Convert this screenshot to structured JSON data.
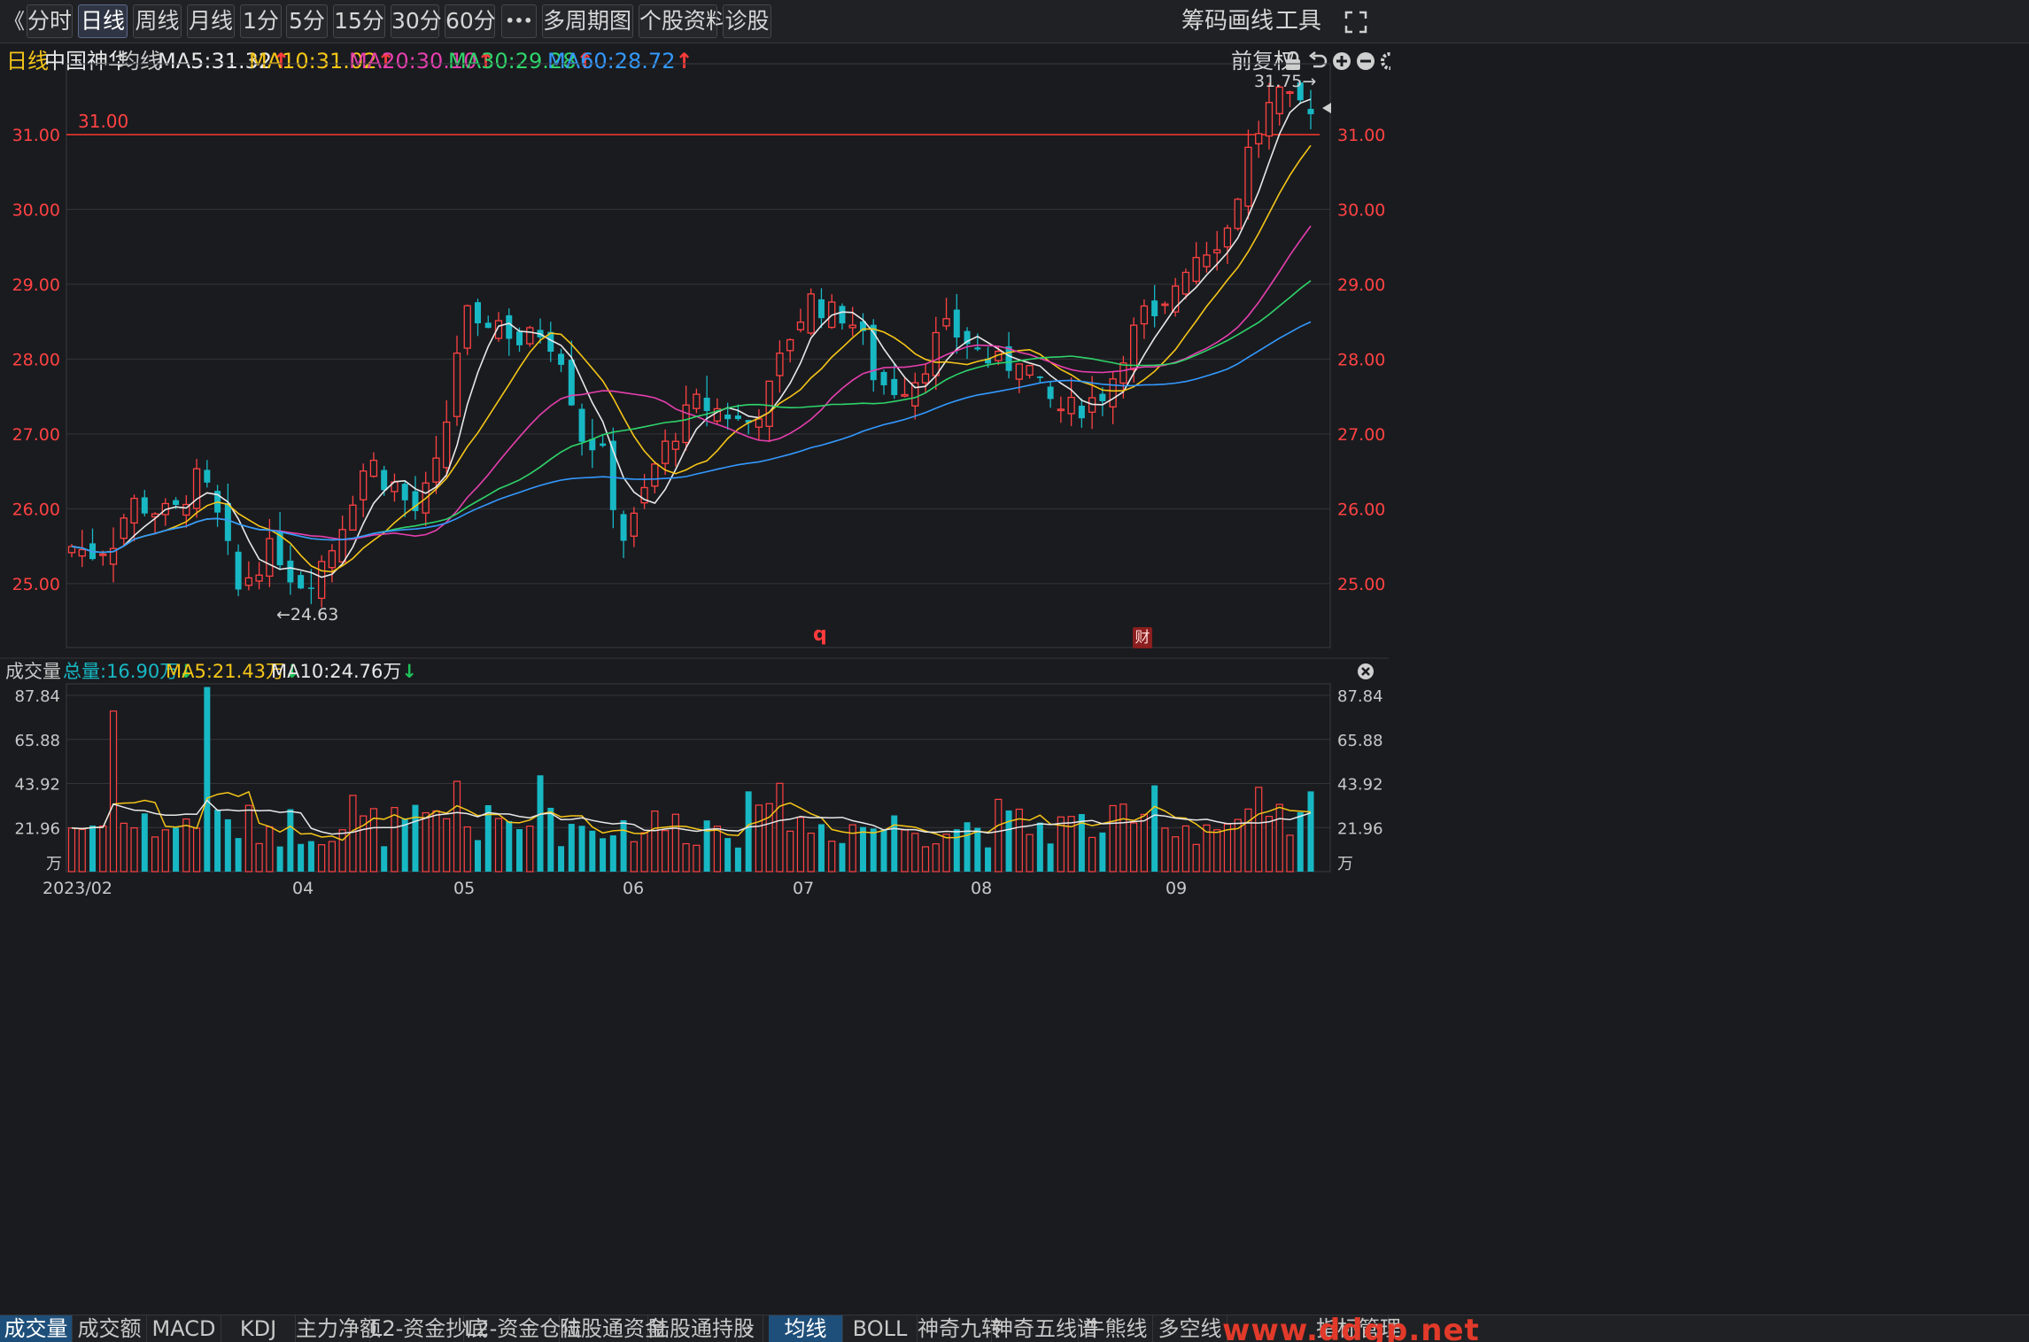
{
  "toolbar": {
    "back_glyph": "《",
    "tabs": [
      {
        "label": "分时",
        "active": false
      },
      {
        "label": "日线",
        "active": true
      },
      {
        "label": "周线",
        "active": false
      },
      {
        "label": "月线",
        "active": false
      },
      {
        "label": "1分",
        "active": false
      },
      {
        "label": "5分",
        "active": false
      },
      {
        "label": "15分",
        "active": false
      },
      {
        "label": "30分",
        "active": false
      },
      {
        "label": "60分",
        "active": false
      },
      {
        "label": "•••",
        "active": false
      },
      {
        "label": "多周期图",
        "active": false
      },
      {
        "label": "个股资料",
        "active": false
      },
      {
        "label": "诊股",
        "active": false
      }
    ],
    "right": {
      "chips": "筹码",
      "draw": "画线",
      "tools": "工具"
    }
  },
  "header": {
    "period": "日线",
    "stock": "中国神华",
    "ma_label": "均线",
    "ma": [
      {
        "label": "MA5:31.32",
        "color": "#e8e8e8"
      },
      {
        "label": "MA10:31.02",
        "color": "#f5c518"
      },
      {
        "label": "MA20:30.10",
        "color": "#e53fae"
      },
      {
        "label": "MA30:29.28",
        "color": "#2fd46a"
      },
      {
        "label": "MA60:28.72",
        "color": "#3399ff"
      }
    ],
    "adjust": "前复权"
  },
  "price_axis": {
    "ticks": [
      "25.00",
      "26.00",
      "27.00",
      "28.00",
      "29.00",
      "30.00",
      "31.00"
    ],
    "ref_line_label": "31.00",
    "high_label": "31.75→",
    "low_label": "←24.63",
    "marker_q": "q",
    "marker_cai": "财"
  },
  "volume": {
    "title": "成交量",
    "total": "总量:16.90万",
    "ma5": "MA5:21.43万",
    "ma10": "MA10:24.76万",
    "ticks": [
      "87.84",
      "65.88",
      "43.92",
      "21.96"
    ],
    "unit": "万"
  },
  "date_axis": [
    "2023/02",
    "04",
    "05",
    "06",
    "07",
    "08",
    "09"
  ],
  "bottom_tabs_left": [
    "成交量",
    "成交额",
    "MACD",
    "KDJ",
    "主力净额",
    "L2-资金抄底",
    "L2-资金仓位",
    "陆股通资金",
    "陆股通持股"
  ],
  "bottom_tabs_right": [
    "均线",
    "BOLL",
    "神奇九转",
    "神奇五线谱",
    "牛熊线",
    "多空线",
    "指标管理"
  ],
  "watermark": "www.ddgp.net",
  "colors": {
    "up": "#ff4242",
    "down": "#17b8c4",
    "ma5": "#e8e8e8",
    "ma10": "#f5c518",
    "ma20": "#e53fae",
    "ma30": "#2fd46a",
    "ma60": "#3399ff"
  }
}
